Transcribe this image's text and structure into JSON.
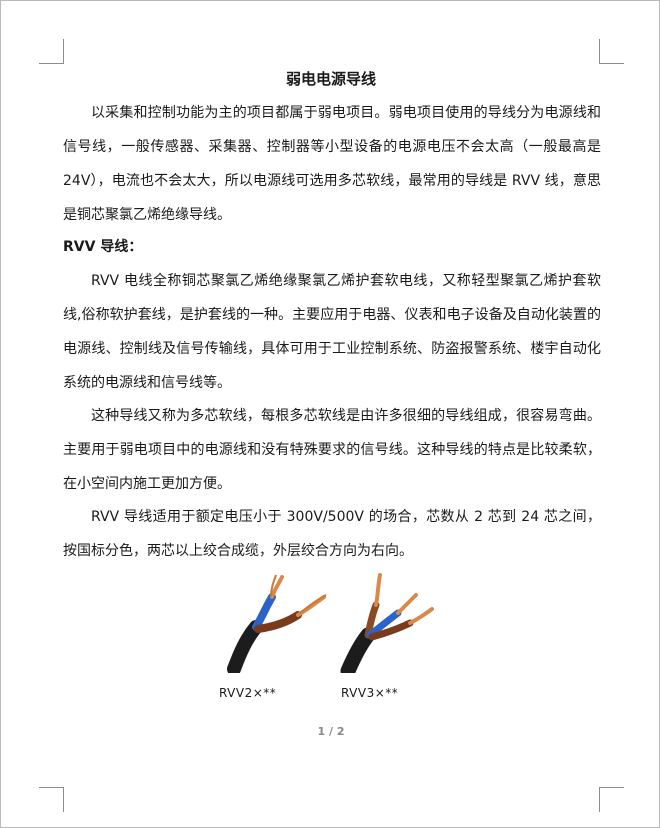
{
  "document": {
    "title": "弱电电源导线",
    "paragraphs": [
      "以采集和控制功能为主的项目都属于弱电项目。弱电项目使用的导线分为电源线和信号线，一般传感器、采集器、控制器等小型设备的电源电压不会太高（一般最高是 24V），电流也不会太大，所以电源线可选用多芯软线，最常用的导线是 RVV 线，意思是铜芯聚氯乙烯绝缘导线。",
      "RVV 电线全称铜芯聚氯乙烯绝缘聚氯乙烯护套软电线，又称轻型聚氯乙烯护套软线,俗称软护套线，是护套线的一种。主要应用于电器、仪表和电子设备及自动化装置的电源线、控制线及信号传输线，具体可用于工业控制系统、防盗报警系统、楼宇自动化系统的电源线和信号线等。",
      "这种导线又称为多芯软线，每根多芯软线是由许多很细的导线组成，很容易弯曲。主要用于弱电项目中的电源线和没有特殊要求的信号线。这种导线的特点是比较柔软，在小空间内施工更加方便。",
      "RVV 导线适用于额定电压小于 300V/500V 的场合，芯数从 2 芯到 24 芯之间，按国标分色，两芯以上绞合成缆，外层绞合方向为右向。"
    ],
    "subheading": "RVV 导线：",
    "captions": [
      "RVV2×**",
      "RVV3×**"
    ],
    "page_number": "1 / 2"
  },
  "colors": {
    "page_border": "#b9b9b9",
    "corner_marks": "#8c8c8c",
    "cable_jacket": "#1c1c1c",
    "wire_blue": "#2b63c8",
    "wire_brown": "#7a3a1c",
    "copper": "#d88a4a"
  },
  "icons": [
    "crop-mark-top-left",
    "crop-mark-top-right",
    "crop-mark-bottom-left",
    "crop-mark-bottom-right"
  ]
}
